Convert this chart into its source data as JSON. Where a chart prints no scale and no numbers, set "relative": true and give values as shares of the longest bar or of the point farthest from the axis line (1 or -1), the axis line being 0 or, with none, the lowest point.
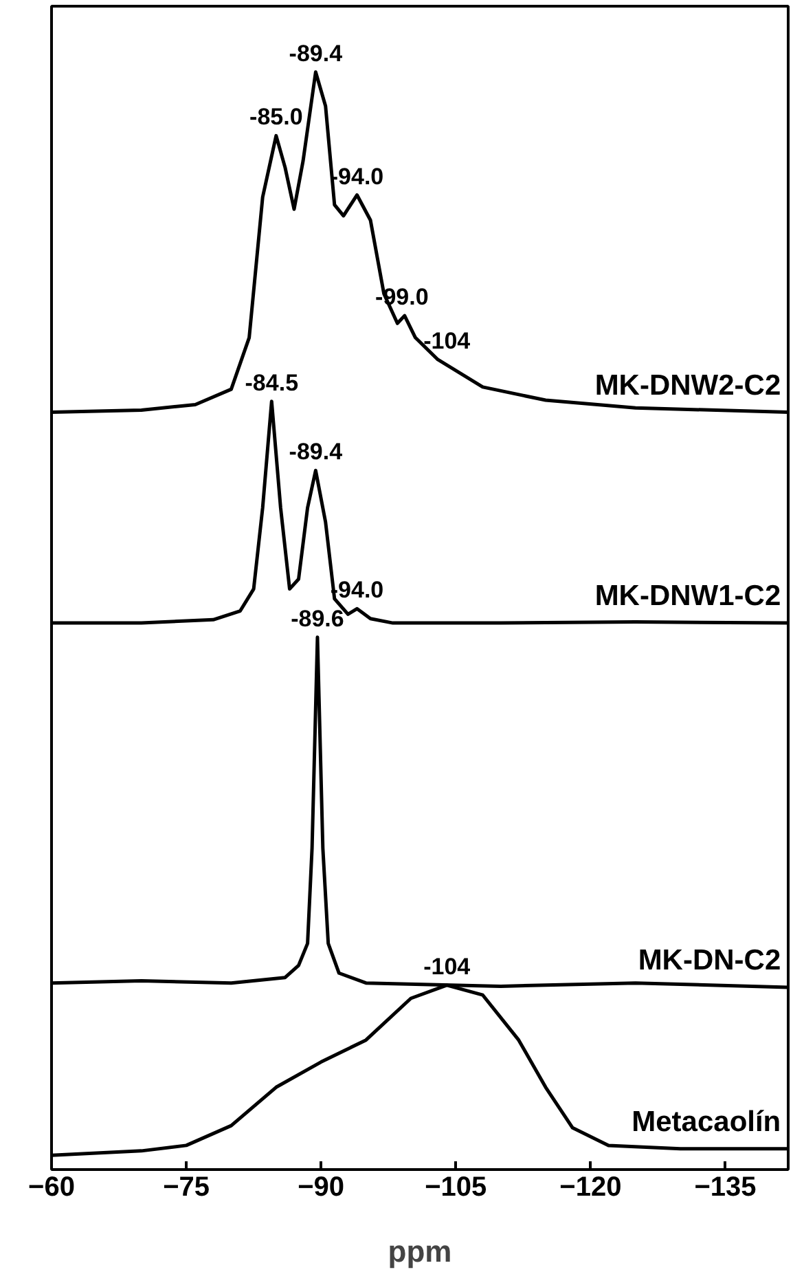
{
  "chart_data": {
    "type": "line",
    "relative": true,
    "xlabel": "ppm",
    "xlim": [
      -60,
      -142
    ],
    "xticks": [
      -60,
      -75,
      -90,
      -105,
      -120,
      -135
    ],
    "tick_labels": "x",
    "grid": false,
    "marker": "none",
    "line_style": "solid",
    "series": [
      {
        "name": "MK-DNW2-C2",
        "color": "#000000",
        "x": [
          -60,
          -70,
          -76,
          -80,
          -82,
          -83.5,
          -85,
          -86,
          -87,
          -88,
          -89.4,
          -90.5,
          -91.5,
          -92.5,
          -94,
          -95.5,
          -97,
          -98.5,
          -99.3,
          -100.5,
          -103,
          -108,
          -115,
          -125,
          -142
        ],
        "values": [
          0.69,
          0.692,
          0.697,
          0.711,
          0.758,
          0.886,
          0.942,
          0.913,
          0.875,
          0.919,
          1.0,
          0.969,
          0.879,
          0.869,
          0.888,
          0.865,
          0.798,
          0.771,
          0.778,
          0.758,
          0.738,
          0.713,
          0.701,
          0.694,
          0.69
        ]
      },
      {
        "name": "MK-DNW1-C2",
        "color": "#000000",
        "x": [
          -60,
          -70,
          -78,
          -81,
          -82.5,
          -83.5,
          -84.5,
          -85.5,
          -86.5,
          -87.5,
          -88.5,
          -89.4,
          -90.5,
          -91.5,
          -93,
          -94,
          -95.5,
          -98,
          -110,
          -125,
          -142
        ],
        "values": [
          0.498,
          0.498,
          0.501,
          0.509,
          0.529,
          0.603,
          0.7,
          0.603,
          0.529,
          0.538,
          0.603,
          0.637,
          0.59,
          0.52,
          0.506,
          0.511,
          0.502,
          0.498,
          0.498,
          0.499,
          0.498
        ]
      },
      {
        "name": "MK-DN-C2",
        "color": "#000000",
        "x": [
          -60,
          -70,
          -80,
          -86,
          -87.5,
          -88.5,
          -89,
          -89.6,
          -90.2,
          -90.8,
          -92,
          -95,
          -110,
          -125,
          -142
        ],
        "values": [
          0.17,
          0.172,
          0.17,
          0.175,
          0.186,
          0.206,
          0.293,
          0.485,
          0.293,
          0.206,
          0.179,
          0.17,
          0.167,
          0.17,
          0.166
        ]
      },
      {
        "name": "Metacaolín",
        "color": "#000000",
        "x": [
          -60,
          -70,
          -75,
          -80,
          -85,
          -90,
          -95,
          -100,
          -104,
          -108,
          -112,
          -115,
          -118,
          -122,
          -130,
          -142
        ],
        "values": [
          0.013,
          0.017,
          0.022,
          0.04,
          0.075,
          0.098,
          0.118,
          0.156,
          0.168,
          0.159,
          0.118,
          0.075,
          0.038,
          0.022,
          0.019,
          0.019
        ]
      }
    ],
    "annotations": [
      {
        "text": "-85.0",
        "x": -85.0,
        "y": 0.942
      },
      {
        "text": "-89.4",
        "x": -89.4,
        "y": 1.0
      },
      {
        "text": "-94.0",
        "x": -94.0,
        "y": 0.888
      },
      {
        "text": "-99.0",
        "x": -99.0,
        "y": 0.778
      },
      {
        "text": "-104",
        "x": -104,
        "y": 0.738
      },
      {
        "text": "-84.5",
        "x": -84.5,
        "y": 0.7
      },
      {
        "text": "-89.4",
        "x": -89.4,
        "y": 0.637
      },
      {
        "text": "-94.0",
        "x": -94.0,
        "y": 0.511
      },
      {
        "text": "-89.6",
        "x": -89.6,
        "y": 0.485
      },
      {
        "text": "-104",
        "x": -104,
        "y": 0.168
      }
    ]
  }
}
